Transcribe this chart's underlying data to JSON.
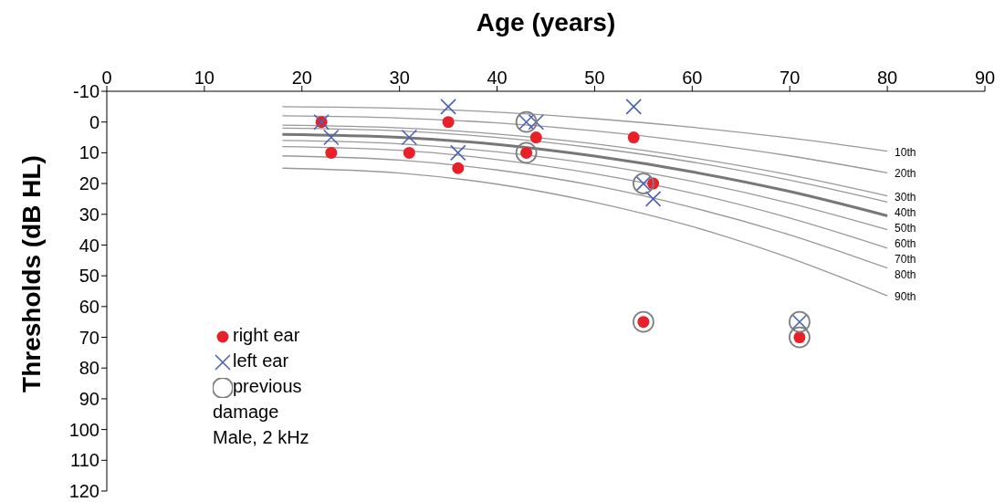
{
  "chart_data": {
    "type": "scatter",
    "xlabel": "Age (years)",
    "ylabel": "Thresholds (dB HL)",
    "xlim": [
      0,
      90
    ],
    "xticks": [
      0,
      10,
      20,
      30,
      40,
      50,
      60,
      70,
      80,
      90
    ],
    "ylim": [
      120,
      -10
    ],
    "yticks": [
      -10,
      0,
      10,
      20,
      30,
      40,
      50,
      60,
      70,
      80,
      90,
      100,
      110,
      120
    ],
    "grid": false,
    "legend": "bottom left",
    "annotations": [
      "Male, 2 kHz"
    ],
    "series": [
      {
        "type": "line",
        "name": "10th",
        "color": "#999999",
        "x": [
          18,
          30,
          40,
          50,
          60,
          70,
          80
        ],
        "values": [
          -5,
          -4.5,
          -3.2,
          -1.1,
          1.7,
          5.2,
          9.5
        ],
        "marker": "none"
      },
      {
        "type": "line",
        "name": "20th",
        "color": "#999999",
        "x": [
          18,
          30,
          40,
          50,
          60,
          70,
          80
        ],
        "values": [
          -2,
          -1.3,
          0.3,
          2.9,
          6.5,
          11.0,
          16.5
        ],
        "marker": "none"
      },
      {
        "type": "line",
        "name": "30th",
        "color": "#999999",
        "x": [
          18,
          30,
          40,
          50,
          60,
          70,
          80
        ],
        "values": [
          1,
          1.9,
          3.9,
          7.1,
          11.6,
          17.2,
          24
        ],
        "marker": "none"
      },
      {
        "type": "line",
        "name": "40th",
        "color": "#999999",
        "x": [
          18,
          30,
          40,
          50,
          60,
          70,
          80
        ],
        "values": [
          2,
          2.9,
          5.0,
          8.4,
          13.0,
          18.9,
          26
        ],
        "marker": "none"
      },
      {
        "type": "line",
        "name": "50th",
        "color": "#777777",
        "x": [
          18,
          30,
          40,
          50,
          60,
          70,
          80
        ],
        "values": [
          4,
          5.0,
          7.3,
          11.1,
          16.2,
          22.6,
          30.5
        ],
        "marker": "none"
      },
      {
        "type": "line",
        "name": "60th",
        "color": "#999999",
        "x": [
          18,
          30,
          40,
          50,
          60,
          70,
          80
        ],
        "values": [
          6,
          7.1,
          9.7,
          13.7,
          19.3,
          26.4,
          35
        ],
        "marker": "none"
      },
      {
        "type": "line",
        "name": "70th",
        "color": "#999999",
        "x": [
          18,
          30,
          40,
          50,
          60,
          70,
          80
        ],
        "values": [
          8,
          9.2,
          12.2,
          16.8,
          23.1,
          31.2,
          41
        ],
        "marker": "none"
      },
      {
        "type": "line",
        "name": "80th",
        "color": "#999999",
        "x": [
          18,
          30,
          40,
          50,
          60,
          70,
          80
        ],
        "values": [
          11,
          12.4,
          15.6,
          20.7,
          27.8,
          36.7,
          47.5
        ],
        "marker": "none"
      },
      {
        "type": "line",
        "name": "90th",
        "color": "#999999",
        "x": [
          18,
          30,
          40,
          50,
          60,
          70,
          80
        ],
        "values": [
          15,
          16.6,
          20.2,
          26.1,
          34.0,
          44.2,
          56.5
        ],
        "marker": "none"
      },
      {
        "name": "previous damage",
        "color": "#7f7f7f",
        "marker": "circle",
        "x": [
          43,
          43,
          55,
          55,
          71,
          71
        ],
        "values": [
          0,
          10,
          20,
          65,
          65,
          70
        ]
      },
      {
        "name": "right ear",
        "color": "#e8202a",
        "marker": "circle",
        "x": [
          22,
          23,
          31,
          35,
          36,
          43,
          44,
          54,
          55,
          56,
          71
        ],
        "values": [
          0,
          10,
          10,
          0,
          15,
          10,
          5,
          5,
          65,
          20,
          70
        ]
      },
      {
        "name": "left ear",
        "color": "#4a62b0",
        "marker": "cross",
        "x": [
          22,
          23,
          31,
          35,
          36,
          43,
          44,
          54,
          55,
          56,
          71
        ],
        "values": [
          0,
          5,
          5,
          -5,
          10,
          0,
          0,
          -5,
          20,
          25,
          65
        ]
      }
    ]
  }
}
